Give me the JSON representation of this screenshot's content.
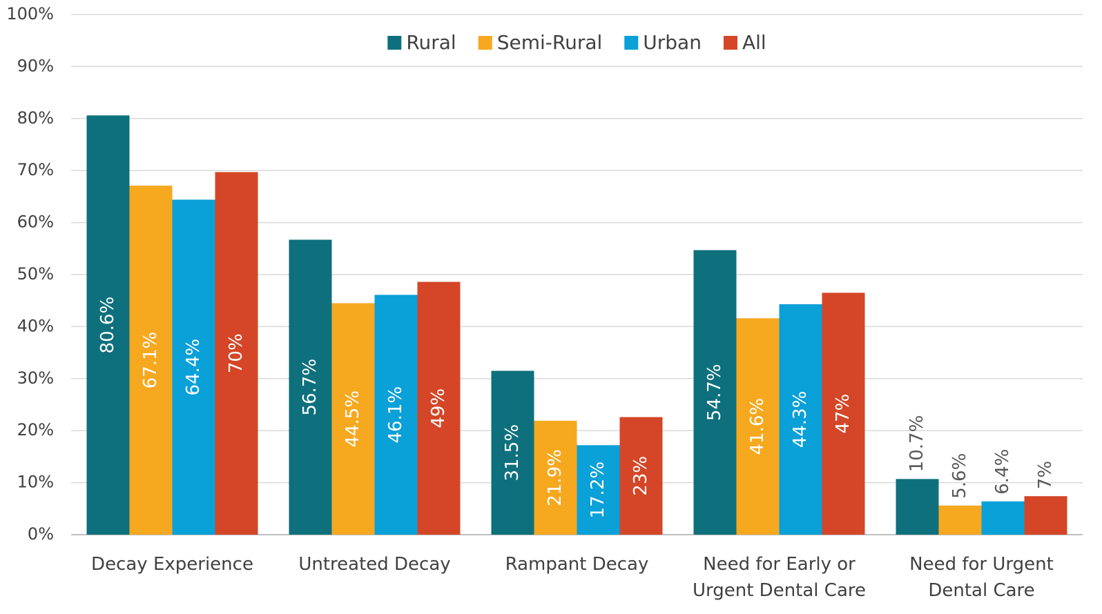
{
  "chart_data": {
    "type": "bar",
    "categories": [
      [
        "Decay Experience"
      ],
      [
        "Untreated Decay"
      ],
      [
        "Rampant Decay"
      ],
      [
        "Need for Early or",
        "Urgent Dental Care"
      ],
      [
        "Need for Urgent",
        "Dental Care"
      ]
    ],
    "series": [
      {
        "name": "Rural",
        "color": "#0e707c",
        "values": [
          80.6,
          56.7,
          31.5,
          54.7,
          10.7
        ],
        "value_labels": [
          "80.6%",
          "56.7%",
          "31.5%",
          "54.7%",
          "10.7%"
        ]
      },
      {
        "name": "Semi-Rural",
        "color": "#f6a81f",
        "values": [
          67.1,
          44.5,
          21.9,
          41.6,
          5.6
        ],
        "value_labels": [
          "67.1%",
          "44.5%",
          "21.9%",
          "41.6%",
          "5.6%"
        ]
      },
      {
        "name": "Urban",
        "color": "#0aa0d8",
        "values": [
          64.4,
          46.1,
          17.2,
          44.3,
          6.4
        ],
        "value_labels": [
          "64.4%",
          "46.1%",
          "17.2%",
          "44.3%",
          "6.4%"
        ]
      },
      {
        "name": "All",
        "color": "#d44627",
        "values": [
          69.7,
          48.6,
          22.6,
          46.5,
          7.4
        ],
        "value_labels": [
          "70%",
          "49%",
          "23%",
          "47%",
          "7%"
        ]
      }
    ],
    "ylim": [
      0,
      100
    ],
    "yticks": [
      {
        "value": 0,
        "label": "0%"
      },
      {
        "value": 10,
        "label": "10%"
      },
      {
        "value": 20,
        "label": "20%"
      },
      {
        "value": 30,
        "label": "30%"
      },
      {
        "value": 40,
        "label": "40%"
      },
      {
        "value": 50,
        "label": "50%"
      },
      {
        "value": 60,
        "label": "60%"
      },
      {
        "value": 70,
        "label": "70%"
      },
      {
        "value": 80,
        "label": "80%"
      },
      {
        "value": 90,
        "label": "90%"
      },
      {
        "value": 100,
        "label": "100%"
      }
    ],
    "grid": true,
    "legend": "top"
  }
}
